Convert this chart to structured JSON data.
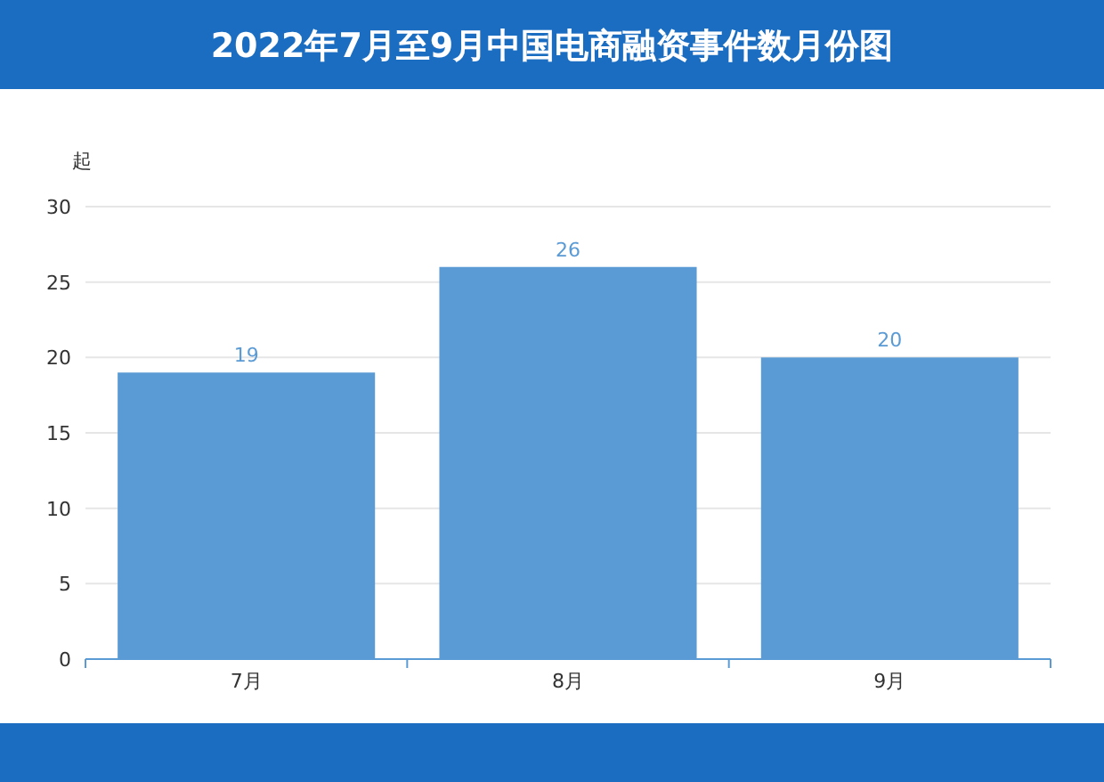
{
  "chart_data": {
    "type": "bar",
    "title": "2022年7月至9月中国电商融资事件数月份图",
    "ylabel": "起",
    "categories": [
      "7月",
      "8月",
      "9月"
    ],
    "values": [
      19,
      26,
      20
    ],
    "color": "#5b9bd5",
    "ylim": [
      0,
      30
    ],
    "yticks": [
      0,
      5,
      10,
      15,
      20,
      25,
      30
    ],
    "grid": "y",
    "data_labels": true
  }
}
